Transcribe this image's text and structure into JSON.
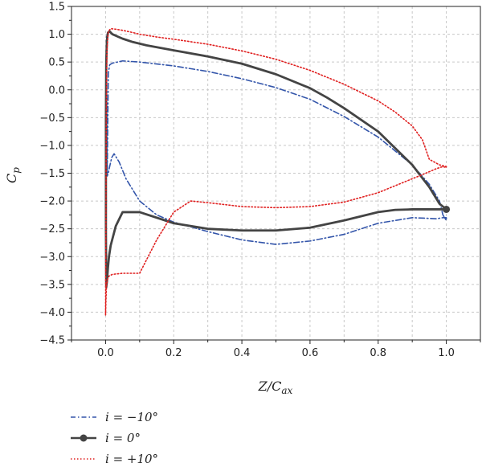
{
  "chart_data": {
    "type": "line",
    "title": "",
    "xlabel": "Z/C",
    "xlabel_sub": "ax",
    "ylabel": "C",
    "ylabel_sub": "p",
    "xlim": [
      -0.1,
      1.1
    ],
    "ylim": [
      -4.5,
      1.5
    ],
    "x_ticks": [
      0.0,
      0.2,
      0.4,
      0.6,
      0.8,
      1.0
    ],
    "x_tick_labels": [
      "0.0",
      "0.2",
      "0.4",
      "0.6",
      "0.8",
      "1.0"
    ],
    "y_ticks": [
      1.5,
      1.0,
      0.5,
      0.0,
      -0.5,
      -1.0,
      -1.5,
      -2.0,
      -2.5,
      -3.0,
      -3.5,
      -4.0,
      -4.5
    ],
    "y_tick_labels": [
      "1.5",
      "1.0",
      "0.5",
      "0.0",
      "−0.5",
      "−1.0",
      "−1.5",
      "−2.0",
      "−2.5",
      "−3.0",
      "−3.5",
      "−4.0",
      "−4.5"
    ],
    "grid": true,
    "legend_position": "bottom-left",
    "series": [
      {
        "name": "i = −10°",
        "color": "#3355aa",
        "style": "dashdot",
        "x": [
          0.005,
          0.008,
          0.012,
          0.02,
          0.05,
          0.1,
          0.2,
          0.3,
          0.4,
          0.5,
          0.6,
          0.7,
          0.8,
          0.9,
          0.95,
          0.98,
          0.99,
          1.0,
          1.0,
          0.99,
          0.97,
          0.94,
          0.9,
          0.85,
          0.8,
          0.75,
          0.7,
          0.6,
          0.5,
          0.4,
          0.3,
          0.2,
          0.15,
          0.1,
          0.06,
          0.04,
          0.025,
          0.018,
          0.012,
          0.008,
          0.005,
          0.003,
          0.002,
          0.003,
          0.005
        ],
        "y": [
          -1.45,
          0.3,
          0.45,
          0.48,
          0.52,
          0.5,
          0.43,
          0.33,
          0.2,
          0.04,
          -0.17,
          -0.48,
          -0.85,
          -1.35,
          -1.7,
          -2.0,
          -2.25,
          -2.35,
          -2.3,
          -2.3,
          -2.32,
          -2.31,
          -2.3,
          -2.35,
          -2.4,
          -2.5,
          -2.6,
          -2.72,
          -2.78,
          -2.7,
          -2.55,
          -2.38,
          -2.25,
          -2.0,
          -1.6,
          -1.3,
          -1.15,
          -1.22,
          -1.38,
          -1.5,
          -1.55,
          0.0,
          0.6,
          0.95,
          1.0
        ]
      },
      {
        "name": "i = 0°",
        "color": "#444444",
        "style": "solid-marker",
        "x": [
          0.002,
          0.004,
          0.007,
          0.01,
          0.015,
          0.03,
          0.05,
          0.1,
          0.2,
          0.3,
          0.4,
          0.5,
          0.6,
          0.7,
          0.8,
          0.85,
          0.9,
          0.95,
          0.97,
          0.99,
          1.0,
          0.98,
          0.95,
          0.9,
          0.8,
          0.7,
          0.65,
          0.6,
          0.5,
          0.4,
          0.3,
          0.2,
          0.12,
          0.08,
          0.06,
          0.05,
          0.035,
          0.02,
          0.012,
          0.007,
          0.004,
          0.002,
          0.001,
          0.001,
          0.002
        ],
        "y": [
          -3.55,
          -3.45,
          -3.2,
          -3.0,
          -2.8,
          -2.45,
          -2.2,
          -2.2,
          -2.4,
          -2.5,
          -2.53,
          -2.53,
          -2.48,
          -2.35,
          -2.2,
          -2.16,
          -2.15,
          -2.15,
          -2.15,
          -2.15,
          -2.15,
          -2.05,
          -1.75,
          -1.35,
          -0.75,
          -0.33,
          -0.14,
          0.03,
          0.28,
          0.47,
          0.6,
          0.71,
          0.8,
          0.86,
          0.9,
          0.92,
          0.96,
          1.0,
          1.05,
          1.03,
          0.9,
          0.5,
          -0.5,
          -2.5,
          -3.55
        ]
      },
      {
        "name": "i = +10°",
        "color": "#e02020",
        "style": "dotted",
        "x": [
          0.0,
          0.001,
          0.003,
          0.006,
          0.01,
          0.02,
          0.05,
          0.1,
          0.15,
          0.2,
          0.25,
          0.3,
          0.4,
          0.5,
          0.6,
          0.7,
          0.8,
          0.9,
          0.94,
          0.97,
          0.99,
          1.0,
          1.0,
          0.98,
          0.95,
          0.93,
          0.9,
          0.85,
          0.8,
          0.7,
          0.6,
          0.5,
          0.4,
          0.3,
          0.2,
          0.15,
          0.1,
          0.08,
          0.05,
          0.03,
          0.015,
          0.008,
          0.004,
          0.002,
          0.001,
          0.0
        ],
        "y": [
          -4.05,
          -3.8,
          -3.5,
          -3.4,
          -3.35,
          -3.32,
          -3.3,
          -3.3,
          -2.7,
          -2.2,
          -2.0,
          -2.03,
          -2.1,
          -2.12,
          -2.1,
          -2.02,
          -1.85,
          -1.6,
          -1.5,
          -1.42,
          -1.38,
          -1.4,
          -1.38,
          -1.35,
          -1.25,
          -0.9,
          -0.65,
          -0.4,
          -0.2,
          0.1,
          0.35,
          0.55,
          0.7,
          0.82,
          0.91,
          0.95,
          1.0,
          1.03,
          1.07,
          1.09,
          1.1,
          1.05,
          0.7,
          -0.5,
          -2.5,
          -4.05
        ]
      }
    ]
  }
}
